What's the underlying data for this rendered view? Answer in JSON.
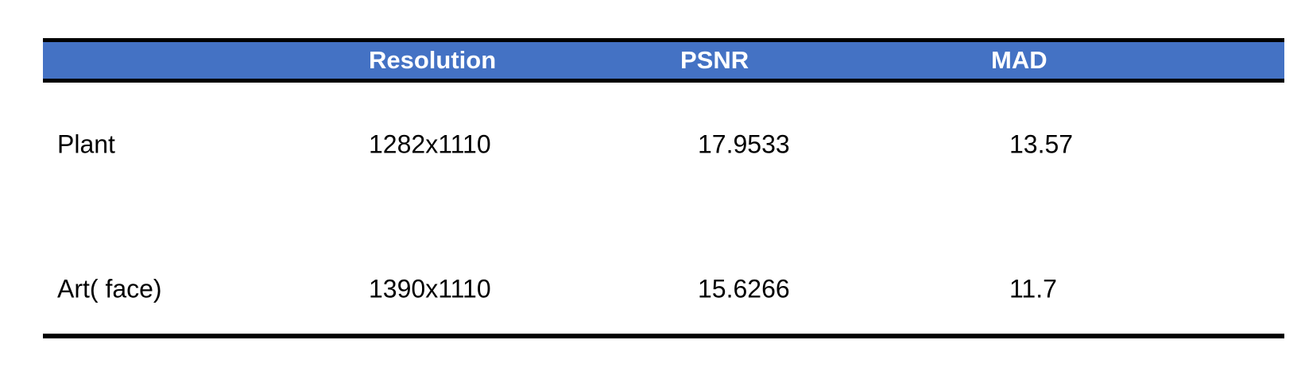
{
  "table": {
    "headers": [
      "",
      "Resolution",
      "PSNR",
      "MAD"
    ],
    "rows": [
      [
        "Plant",
        "1282x1110",
        "17.9533",
        "13.57"
      ],
      [
        "Art( face)",
        "1390x1110",
        "15.6266",
        "11.7"
      ]
    ]
  },
  "colors": {
    "header_background": "#4472c4",
    "header_text": "#ffffff",
    "rule": "#000000",
    "body_text": "#000000"
  }
}
